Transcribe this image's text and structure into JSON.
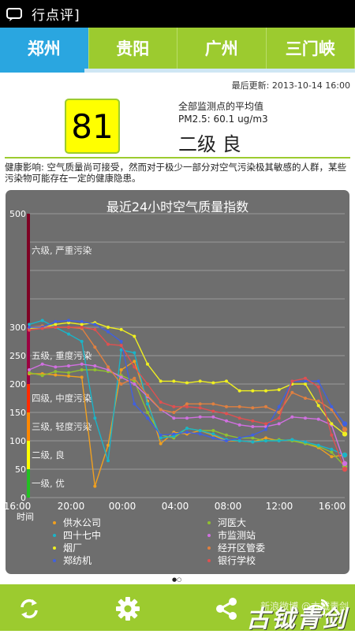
{
  "app": {
    "title": "行点评]"
  },
  "tabs": [
    {
      "label": "郑州",
      "active": true
    },
    {
      "label": "贵阳",
      "active": false
    },
    {
      "label": "广州",
      "active": false
    },
    {
      "label": "三门峡",
      "active": false
    }
  ],
  "summary": {
    "updated": "最后更新: 2013-10-14 16:00",
    "aqi": "81",
    "subtitle": "全部监测点的平均值",
    "pm25": "PM2.5: 60.1 ug/m3",
    "level": "二级 良",
    "aqi_color": "#ffff00"
  },
  "health": "健康影响: 空气质量尚可接受，然而对于极少一部分对空气污染极其敏感的人群，某些污染物可能存在一定的健康隐患。",
  "chart_data": {
    "type": "line",
    "title": "最近24小时空气质量指数",
    "xlabel": "时间",
    "ylim": [
      0,
      500
    ],
    "yticks": [
      0,
      50,
      100,
      150,
      200,
      250,
      300,
      350,
      400,
      450,
      500
    ],
    "ytick_labels": [
      "0",
      "50",
      "100",
      "150",
      "200",
      "250",
      "300",
      "",
      "",
      "",
      "500"
    ],
    "grid": true,
    "xticks": [
      "16:00",
      "20:00",
      "00:00",
      "04:00",
      "08:00",
      "12:00",
      "16:00"
    ],
    "bands": [
      {
        "label": "一级, 优",
        "from": 0,
        "to": 50,
        "color": "#22c022"
      },
      {
        "label": "二级, 良",
        "from": 50,
        "to": 100,
        "color": "#ffff00"
      },
      {
        "label": "三级, 轻度污染",
        "from": 100,
        "to": 150,
        "color": "#ff8800"
      },
      {
        "label": "四级, 中度污染",
        "from": 150,
        "to": 200,
        "color": "#ff2a00"
      },
      {
        "label": "五级, 重度污染",
        "from": 200,
        "to": 300,
        "color": "#9b0040"
      },
      {
        "label": "六级, 严重污染",
        "from": 300,
        "to": 500,
        "color": "#7e0023"
      }
    ],
    "series": [
      {
        "name": "供水公司",
        "color": "#f0a020",
        "values": [
          218,
          218,
          216,
          214,
          212,
          20,
          92,
          225,
          240,
          170,
          95,
          115,
          112,
          118,
          110,
          100,
          100,
          98,
          105,
          100,
          102,
          95,
          88,
          72,
          75
        ]
      },
      {
        "name": "河医大",
        "color": "#90c030",
        "values": [
          220,
          215,
          222,
          220,
          225,
          225,
          222,
          215,
          205,
          150,
          110,
          105,
          122,
          118,
          118,
          110,
          105,
          105,
          100,
          102,
          100,
          95,
          90,
          80,
          55
        ]
      },
      {
        "name": "四十七中",
        "color": "#1ab4c8",
        "values": [
          305,
          312,
          300,
          288,
          275,
          140,
          65,
          260,
          255,
          165,
          105,
          108,
          122,
          118,
          112,
          102,
          100,
          98,
          100,
          100,
          102,
          98,
          92,
          85,
          75
        ]
      },
      {
        "name": "市监测站",
        "color": "#d070e0",
        "values": [
          225,
          235,
          230,
          232,
          235,
          232,
          225,
          212,
          200,
          178,
          155,
          140,
          140,
          142,
          142,
          135,
          128,
          125,
          125,
          130,
          142,
          140,
          138,
          128,
          60
        ]
      },
      {
        "name": "烟厂",
        "color": "#f0f020",
        "values": [
          298,
          300,
          305,
          308,
          305,
          308,
          300,
          296,
          284,
          235,
          205,
          205,
          202,
          205,
          202,
          205,
          188,
          188,
          188,
          190,
          200,
          200,
          162,
          130,
          112
        ]
      },
      {
        "name": "经开区管委",
        "color": "#e08040",
        "values": [
          300,
          302,
          300,
          300,
          298,
          265,
          230,
          200,
          210,
          180,
          155,
          150,
          165,
          165,
          165,
          160,
          160,
          158,
          160,
          150,
          185,
          175,
          170,
          155,
          120
        ]
      },
      {
        "name": "郑纺机",
        "color": "#4060e0",
        "values": [
          300,
          300,
          310,
          312,
          310,
          305,
          292,
          275,
          165,
          140,
          110,
          112,
          115,
          112,
          105,
          100,
          105,
          110,
          120,
          160,
          205,
          205,
          205,
          160,
          130
        ]
      },
      {
        "name": "银行学校",
        "color": "#e05050",
        "values": [
          295,
          298,
          300,
          300,
          300,
          296,
          270,
          268,
          230,
          200,
          168,
          160,
          160,
          158,
          152,
          148,
          140,
          135,
          130,
          140,
          205,
          210,
          195,
          110,
          50
        ]
      }
    ]
  },
  "legend_title_hidden": "",
  "pager": "●○",
  "bottom": {
    "refresh": "refresh-icon",
    "settings": "gear-icon",
    "share": "share-icon",
    "weibo": "weibo-icon"
  },
  "watermark": {
    "small": "新浪微博 @古钺青剑",
    "big": "古钺青剑"
  }
}
